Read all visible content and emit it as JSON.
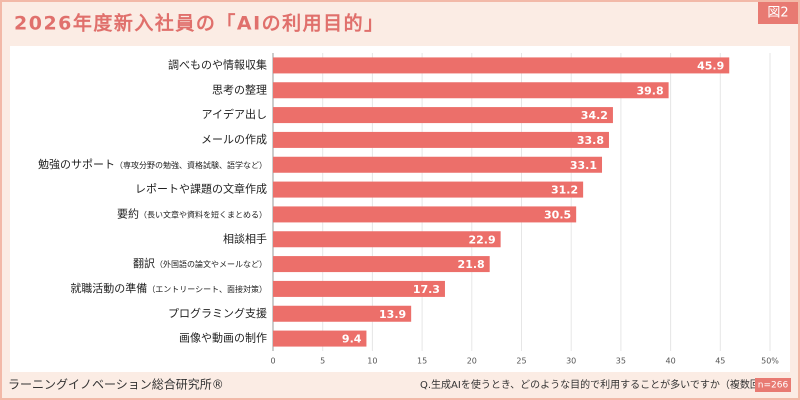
{
  "chart_data": {
    "type": "barh",
    "title": "2026年度新入社員の「AIの利用目的」",
    "badge": "図2",
    "source": "ラーニングイノベーション総合研究所®",
    "question": "Q.生成AIを使うとき、どのような目的で利用することが多いですか（複数回答）",
    "sample": "n=266",
    "categories": [
      "調べものや情報収集",
      "思考の整理",
      "アイデア出し",
      "メールの作成",
      "勉強のサポート（専攻分野の勉強、資格試験、語学など）",
      "レポートや課題の文章作成",
      "要約（長い文章や資料を短くまとめる）",
      "相談相手",
      "翻訳（外国語の論文やメールなど）",
      "就職活動の準備（エントリーシート、面接対策）",
      "プログラミング支援",
      "画像や動画の制作"
    ],
    "values": [
      45.9,
      39.8,
      34.2,
      33.8,
      33.1,
      31.2,
      30.5,
      22.9,
      21.8,
      17.3,
      13.9,
      9.4
    ],
    "color": "#ec6f6a",
    "xlim": [
      0,
      50
    ],
    "xticks": [
      0,
      5,
      10,
      15,
      20,
      25,
      30,
      35,
      40,
      45,
      {
        "value": 50,
        "label": "50%"
      }
    ],
    "grid": true
  }
}
